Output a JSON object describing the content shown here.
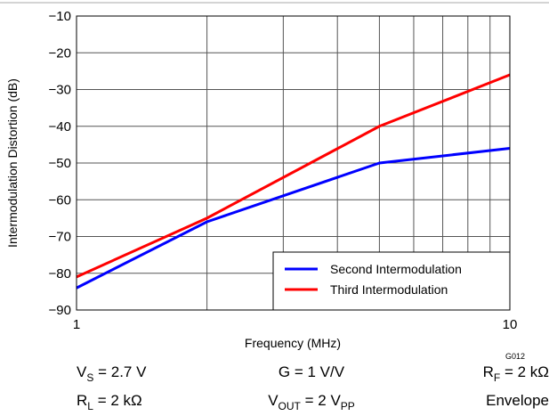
{
  "chart_data": {
    "type": "line",
    "xlabel": "Frequency (MHz)",
    "ylabel": "Intermodulation Distortion (dB)",
    "xscale": "log",
    "xlim": [
      1,
      10
    ],
    "ylim": [
      -90,
      -10
    ],
    "x_ticks": [
      1,
      10
    ],
    "x_tick_labels": [
      "1",
      "10"
    ],
    "x_grid": [
      2,
      3,
      4,
      5,
      6,
      7,
      8,
      9
    ],
    "y_ticks": [
      -10,
      -20,
      -30,
      -40,
      -50,
      -60,
      -70,
      -80,
      -90
    ],
    "y_tick_labels": [
      "−10",
      "−20",
      "−30",
      "−40",
      "−50",
      "−60",
      "−70",
      "−80",
      "−90"
    ],
    "grid": true,
    "legend_position": "bottom-right",
    "series": [
      {
        "name": "Second Intermodulation",
        "color": "#0000ff",
        "x": [
          1,
          2,
          5,
          10
        ],
        "y": [
          -84,
          -66,
          -50,
          -46
        ]
      },
      {
        "name": "Third Intermodulation",
        "color": "#ff0000",
        "x": [
          1,
          2,
          5,
          10
        ],
        "y": [
          -81,
          -65,
          -40,
          -26
        ]
      }
    ],
    "figure_code": "G012",
    "conditions": [
      [
        {
          "main": "V",
          "sub": "S",
          "rest": " = 2.7 V"
        },
        {
          "main": "G = 1 V/V"
        },
        {
          "main": "R",
          "sub": "F",
          "rest": " = 2 kΩ"
        }
      ],
      [
        {
          "main": "R",
          "sub": "L",
          "rest": " = 2 kΩ"
        },
        {
          "main": "V",
          "sub": "OUT",
          "rest": " = 2 V",
          "sub2": "PP"
        },
        {
          "main": "Envelope"
        }
      ]
    ]
  }
}
